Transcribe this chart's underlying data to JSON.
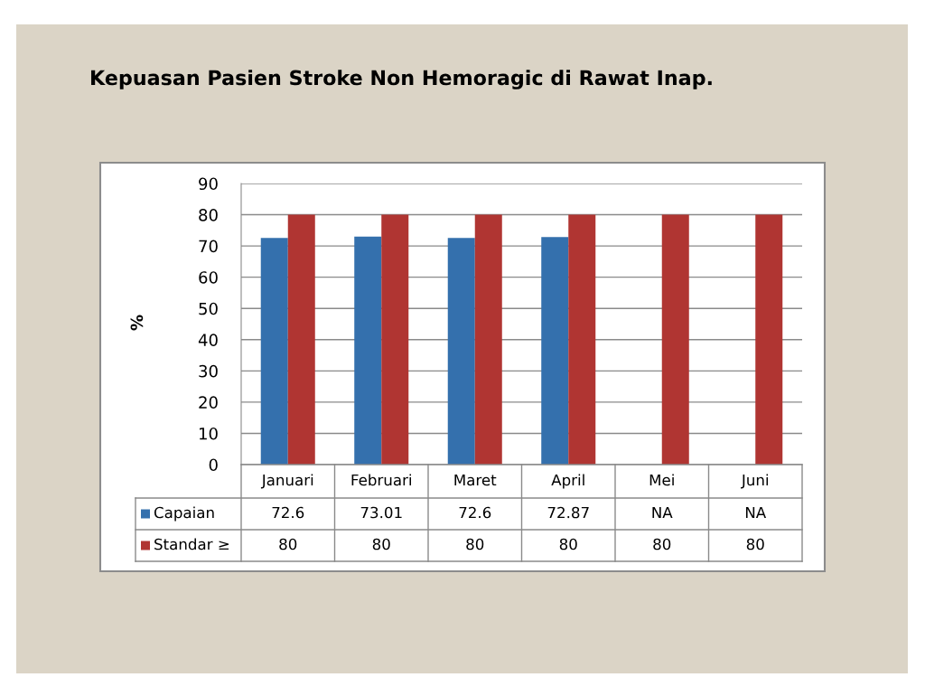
{
  "chart_data": {
    "type": "bar",
    "title": "Kepuasan Pasien Stroke Non Hemoragic di Rawat Inap.",
    "ylabel": "%",
    "categories": [
      "Januari",
      "Februari",
      "Maret",
      "April",
      "Mei",
      "Juni"
    ],
    "series": [
      {
        "name": "Capaian",
        "color": "#3470ad",
        "values": [
          72.6,
          73.01,
          72.6,
          72.87,
          null,
          null
        ],
        "value_labels": [
          "72.6",
          "73.01",
          "72.6",
          "72.87",
          "NA",
          "NA"
        ]
      },
      {
        "name": "Standar ≥",
        "color": "#b03532",
        "values": [
          80,
          80,
          80,
          80,
          80,
          80
        ],
        "value_labels": [
          "80",
          "80",
          "80",
          "80",
          "80",
          "80"
        ]
      }
    ],
    "ylim": [
      0,
      90
    ],
    "yticks": [
      0,
      10,
      20,
      30,
      40,
      50,
      60,
      70,
      80,
      90
    ],
    "grid": "y",
    "legend": "bottom"
  }
}
